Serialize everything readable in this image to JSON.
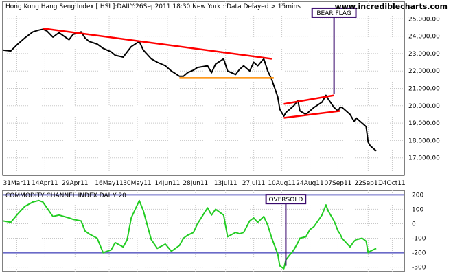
{
  "chart_data": [
    {
      "type": "line",
      "title": "Hong Kong Hang Seng Index [ HSI ]:DAILY:26Sep2011 18:30 New York : Data Delayed > 15mins",
      "watermark": "www.incrediblecharts.com",
      "ylim": [
        16000,
        26000
      ],
      "y_ticks": [
        "25,000.00",
        "24,000.00",
        "23,000.00",
        "22,000.00",
        "21,000.00",
        "20,000.00",
        "19,000.00",
        "18,000.00",
        "17,000.00"
      ],
      "y_tick_values": [
        25000,
        24000,
        23000,
        22000,
        21000,
        20000,
        19000,
        18000,
        17000
      ],
      "x_ticks": [
        "31Mar11",
        "14Apr11",
        "29Apr11",
        "16May11",
        "30May11",
        "14Jun11",
        "28Jun11",
        "13Jul11",
        "27Jul11",
        "10Aug11",
        "24Aug11",
        "07Sep11",
        "22Sep11",
        "04Oct11"
      ],
      "x_range": [
        "2011-03-24",
        "2011-10-10"
      ],
      "series": [
        {
          "color": "#000000",
          "points": [
            [
              "2011-03-24",
              23200
            ],
            [
              "2011-03-28",
              23150
            ],
            [
              "2011-03-31",
              23500
            ],
            [
              "2011-04-04",
              23900
            ],
            [
              "2011-04-08",
              24250
            ],
            [
              "2011-04-11",
              24350
            ],
            [
              "2011-04-13",
              24400
            ],
            [
              "2011-04-15",
              24300
            ],
            [
              "2011-04-18",
              23950
            ],
            [
              "2011-04-21",
              24200
            ],
            [
              "2011-04-26",
              23800
            ],
            [
              "2011-04-28",
              24100
            ],
            [
              "2011-05-02",
              24250
            ],
            [
              "2011-05-04",
              23900
            ],
            [
              "2011-05-06",
              23700
            ],
            [
              "2011-05-10",
              23550
            ],
            [
              "2011-05-13",
              23300
            ],
            [
              "2011-05-17",
              23100
            ],
            [
              "2011-05-19",
              22900
            ],
            [
              "2011-05-23",
              22800
            ],
            [
              "2011-05-25",
              23100
            ],
            [
              "2011-05-27",
              23400
            ],
            [
              "2011-05-31",
              23700
            ],
            [
              "2011-06-02",
              23200
            ],
            [
              "2011-06-06",
              22700
            ],
            [
              "2011-06-09",
              22500
            ],
            [
              "2011-06-13",
              22300
            ],
            [
              "2011-06-16",
              22000
            ],
            [
              "2011-06-20",
              21700
            ],
            [
              "2011-06-22",
              21700
            ],
            [
              "2011-06-24",
              21900
            ],
            [
              "2011-06-27",
              22050
            ],
            [
              "2011-06-29",
              22200
            ],
            [
              "2011-07-04",
              22300
            ],
            [
              "2011-07-06",
              21900
            ],
            [
              "2011-07-08",
              22400
            ],
            [
              "2011-07-12",
              22700
            ],
            [
              "2011-07-14",
              22000
            ],
            [
              "2011-07-18",
              21800
            ],
            [
              "2011-07-20",
              22100
            ],
            [
              "2011-07-22",
              22300
            ],
            [
              "2011-07-25",
              22000
            ],
            [
              "2011-07-27",
              22500
            ],
            [
              "2011-07-29",
              22300
            ],
            [
              "2011-08-01",
              22700
            ],
            [
              "2011-08-03",
              22000
            ],
            [
              "2011-08-05",
              21500
            ],
            [
              "2011-08-08",
              20500
            ],
            [
              "2011-08-09",
              19800
            ],
            [
              "2011-08-11",
              19400
            ],
            [
              "2011-08-12",
              19600
            ],
            [
              "2011-08-16",
              20000
            ],
            [
              "2011-08-18",
              20300
            ],
            [
              "2011-08-19",
              19700
            ],
            [
              "2011-08-22",
              19500
            ],
            [
              "2011-08-24",
              19700
            ],
            [
              "2011-08-26",
              19900
            ],
            [
              "2011-08-30",
              20200
            ],
            [
              "2011-09-01",
              20600
            ],
            [
              "2011-09-02",
              20400
            ],
            [
              "2011-09-05",
              19900
            ],
            [
              "2011-09-07",
              19700
            ],
            [
              "2011-09-08",
              19900
            ],
            [
              "2011-09-09",
              19900
            ],
            [
              "2011-09-13",
              19500
            ],
            [
              "2011-09-15",
              19100
            ],
            [
              "2011-09-16",
              19300
            ],
            [
              "2011-09-19",
              19000
            ],
            [
              "2011-09-21",
              18800
            ],
            [
              "2011-09-22",
              17900
            ],
            [
              "2011-09-23",
              17700
            ],
            [
              "2011-09-26",
              17400
            ]
          ]
        }
      ],
      "trendlines": [
        {
          "color": "#ff0000",
          "from": [
            "2011-04-13",
            24450
          ],
          "to": [
            "2011-08-05",
            22700
          ]
        },
        {
          "color": "#ff8c00",
          "from": [
            "2011-06-20",
            21600
          ],
          "to": [
            "2011-08-06",
            21600
          ]
        },
        {
          "color": "#ff0000",
          "from": [
            "2011-08-11",
            20100
          ],
          "to": [
            "2011-09-05",
            20600
          ]
        },
        {
          "color": "#ff0000",
          "from": [
            "2011-08-11",
            19300
          ],
          "to": [
            "2011-09-08",
            19700
          ]
        }
      ],
      "annotations": [
        {
          "text": "BEAR FLAG",
          "label_at": [
            "2011-09-05",
            25350
          ],
          "arrow_to": [
            "2011-09-05",
            20700
          ],
          "color": "#3a0a6e"
        }
      ]
    },
    {
      "type": "line",
      "title": "COMMODITY CHANNEL INDEX DAILY 20",
      "ylim": [
        -330,
        230
      ],
      "y_ticks": [
        "200",
        "100",
        "0",
        "-100",
        "-200",
        "-300"
      ],
      "y_tick_values": [
        200,
        100,
        0,
        -100,
        -200,
        -300
      ],
      "reference_lines": [
        200,
        -200
      ],
      "series": [
        {
          "color": "#22cc22",
          "points": [
            [
              "2011-03-24",
              20
            ],
            [
              "2011-03-28",
              10
            ],
            [
              "2011-03-31",
              60
            ],
            [
              "2011-04-04",
              120
            ],
            [
              "2011-04-08",
              150
            ],
            [
              "2011-04-11",
              160
            ],
            [
              "2011-04-13",
              150
            ],
            [
              "2011-04-15",
              110
            ],
            [
              "2011-04-18",
              50
            ],
            [
              "2011-04-21",
              60
            ],
            [
              "2011-04-26",
              40
            ],
            [
              "2011-04-28",
              30
            ],
            [
              "2011-05-02",
              20
            ],
            [
              "2011-05-04",
              -50
            ],
            [
              "2011-05-06",
              -70
            ],
            [
              "2011-05-10",
              -100
            ],
            [
              "2011-05-13",
              -200
            ],
            [
              "2011-05-17",
              -180
            ],
            [
              "2011-05-19",
              -130
            ],
            [
              "2011-05-23",
              -160
            ],
            [
              "2011-05-25",
              -110
            ],
            [
              "2011-05-27",
              40
            ],
            [
              "2011-05-31",
              160
            ],
            [
              "2011-06-02",
              90
            ],
            [
              "2011-06-06",
              -110
            ],
            [
              "2011-06-09",
              -170
            ],
            [
              "2011-06-13",
              -140
            ],
            [
              "2011-06-16",
              -190
            ],
            [
              "2011-06-20",
              -150
            ],
            [
              "2011-06-22",
              -100
            ],
            [
              "2011-06-24",
              -80
            ],
            [
              "2011-06-27",
              -60
            ],
            [
              "2011-06-29",
              0
            ],
            [
              "2011-07-04",
              110
            ],
            [
              "2011-07-06",
              60
            ],
            [
              "2011-07-08",
              100
            ],
            [
              "2011-07-12",
              60
            ],
            [
              "2011-07-14",
              -90
            ],
            [
              "2011-07-18",
              -60
            ],
            [
              "2011-07-20",
              -70
            ],
            [
              "2011-07-22",
              -60
            ],
            [
              "2011-07-25",
              20
            ],
            [
              "2011-07-27",
              40
            ],
            [
              "2011-07-29",
              10
            ],
            [
              "2011-08-01",
              50
            ],
            [
              "2011-08-03",
              -10
            ],
            [
              "2011-08-05",
              -100
            ],
            [
              "2011-08-08",
              -210
            ],
            [
              "2011-08-09",
              -290
            ],
            [
              "2011-08-11",
              -310
            ],
            [
              "2011-08-12",
              -250
            ],
            [
              "2011-08-16",
              -180
            ],
            [
              "2011-08-18",
              -130
            ],
            [
              "2011-08-19",
              -100
            ],
            [
              "2011-08-22",
              -90
            ],
            [
              "2011-08-24",
              -40
            ],
            [
              "2011-08-26",
              -20
            ],
            [
              "2011-08-30",
              60
            ],
            [
              "2011-09-01",
              130
            ],
            [
              "2011-09-02",
              90
            ],
            [
              "2011-09-05",
              20
            ],
            [
              "2011-09-07",
              -50
            ],
            [
              "2011-09-08",
              -70
            ],
            [
              "2011-09-09",
              -100
            ],
            [
              "2011-09-13",
              -160
            ],
            [
              "2011-09-15",
              -120
            ],
            [
              "2011-09-16",
              -110
            ],
            [
              "2011-09-19",
              -100
            ],
            [
              "2011-09-21",
              -120
            ],
            [
              "2011-09-22",
              -200
            ],
            [
              "2011-09-23",
              -190
            ],
            [
              "2011-09-26",
              -170
            ]
          ]
        }
      ],
      "annotations": [
        {
          "text": "OVERSOLD",
          "label_at": [
            "2011-08-12",
            170
          ],
          "arrow_to": [
            "2011-08-12",
            -290
          ],
          "color": "#3a0a6e"
        }
      ]
    }
  ]
}
